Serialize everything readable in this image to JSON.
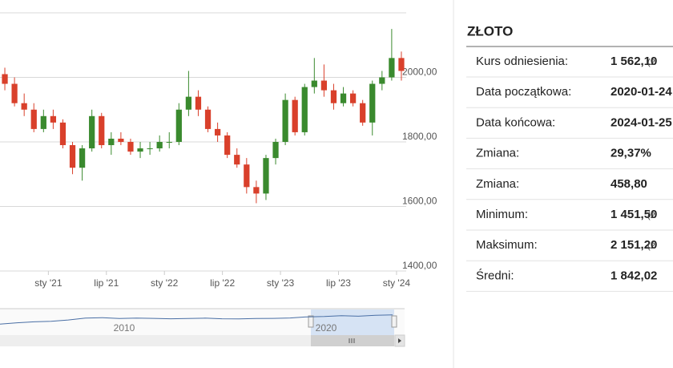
{
  "chart_data": {
    "type": "candlestick",
    "x": [
      "2020-08",
      "2020-09",
      "2020-10",
      "2020-11",
      "2020-12",
      "2021-01",
      "2021-02",
      "2021-03",
      "2021-04",
      "2021-05",
      "2021-06",
      "2021-07",
      "2021-08",
      "2021-09",
      "2021-10",
      "2021-11",
      "2021-12",
      "2022-01",
      "2022-02",
      "2022-03",
      "2022-04",
      "2022-05",
      "2022-06",
      "2022-07",
      "2022-08",
      "2022-09",
      "2022-10",
      "2022-11",
      "2022-12",
      "2023-01",
      "2023-02",
      "2023-03",
      "2023-04",
      "2023-05",
      "2023-06",
      "2023-07",
      "2023-08",
      "2023-09",
      "2023-10",
      "2023-11",
      "2023-12",
      "2024-01"
    ],
    "open": [
      2010,
      1980,
      1920,
      1900,
      1840,
      1880,
      1860,
      1790,
      1720,
      1780,
      1880,
      1790,
      1810,
      1800,
      1770,
      1780,
      1780,
      1800,
      1800,
      1900,
      1940,
      1900,
      1840,
      1820,
      1760,
      1730,
      1660,
      1640,
      1750,
      1800,
      1930,
      1830,
      1970,
      1990,
      1960,
      1920,
      1950,
      1920,
      1860,
      1980,
      2000,
      2060
    ],
    "high": [
      2030,
      2000,
      1950,
      1920,
      1900,
      1900,
      1870,
      1800,
      1790,
      1900,
      1890,
      1830,
      1830,
      1810,
      1800,
      1800,
      1820,
      1830,
      1920,
      2020,
      1960,
      1910,
      1860,
      1830,
      1780,
      1750,
      1680,
      1760,
      1810,
      1950,
      1940,
      1980,
      2060,
      2040,
      1980,
      1970,
      1960,
      1930,
      1990,
      2020,
      2150,
      2080
    ],
    "low": [
      1960,
      1910,
      1880,
      1830,
      1830,
      1840,
      1780,
      1700,
      1680,
      1770,
      1780,
      1760,
      1790,
      1760,
      1750,
      1760,
      1770,
      1780,
      1790,
      1880,
      1880,
      1830,
      1800,
      1750,
      1720,
      1640,
      1610,
      1620,
      1730,
      1790,
      1820,
      1820,
      1950,
      1940,
      1900,
      1910,
      1910,
      1850,
      1820,
      1960,
      1990,
      1990
    ],
    "close": [
      1980,
      1920,
      1900,
      1840,
      1880,
      1860,
      1790,
      1720,
      1780,
      1880,
      1790,
      1810,
      1800,
      1770,
      1780,
      1780,
      1800,
      1800,
      1900,
      1940,
      1900,
      1840,
      1820,
      1760,
      1730,
      1660,
      1640,
      1750,
      1800,
      1930,
      1830,
      1970,
      1990,
      1960,
      1920,
      1950,
      1920,
      1860,
      1980,
      2000,
      2060,
      2020
    ],
    "up_color": "#3a8a2e",
    "down_color": "#d9402b",
    "xlim": [
      "2020-08",
      "2024-02"
    ],
    "xticks": [
      {
        "value": "2021-01",
        "label": "sty '21"
      },
      {
        "value": "2021-07",
        "label": "lip '21"
      },
      {
        "value": "2022-01",
        "label": "sty '22"
      },
      {
        "value": "2022-07",
        "label": "lip '22"
      },
      {
        "value": "2023-01",
        "label": "sty '23"
      },
      {
        "value": "2023-07",
        "label": "lip '23"
      },
      {
        "value": "2024-01",
        "label": "sty '24"
      }
    ],
    "ylim": [
      1400,
      2200
    ],
    "yticks": [
      {
        "value": 1400,
        "label": "1400,00"
      },
      {
        "value": 1600,
        "label": "1600,00"
      },
      {
        "value": 1800,
        "label": "1800,00"
      },
      {
        "value": 2000,
        "label": "2000,00"
      }
    ],
    "grid": true,
    "navigator": {
      "labels": [
        "2010",
        "2020"
      ],
      "ylim": [
        0,
        2400
      ],
      "values": [
        1000,
        1150,
        1250,
        1300,
        1450,
        1650,
        1700,
        1600,
        1650,
        1620,
        1580,
        1600,
        1650,
        1580,
        1560,
        1600,
        1620,
        1660,
        1780,
        1820,
        1900,
        1850,
        1950,
        2000
      ]
    }
  },
  "table": {
    "title": "ZŁOTO",
    "rows": [
      [
        "Kurs odniesienia:",
        "1 562,10",
        "(2"
      ],
      [
        "Data początkowa:",
        "2020-01-24"
      ],
      [
        "Data końcowa:",
        "2024-01-25"
      ],
      [
        "Zmiana:",
        "29,37%"
      ],
      [
        "Zmiana:",
        "458,80"
      ],
      [
        "Minimum:",
        "1 451,50",
        "(2"
      ],
      [
        "Maksimum:",
        "2 151,20",
        "(2"
      ],
      [
        "Średni:",
        "1 842,02"
      ]
    ]
  }
}
